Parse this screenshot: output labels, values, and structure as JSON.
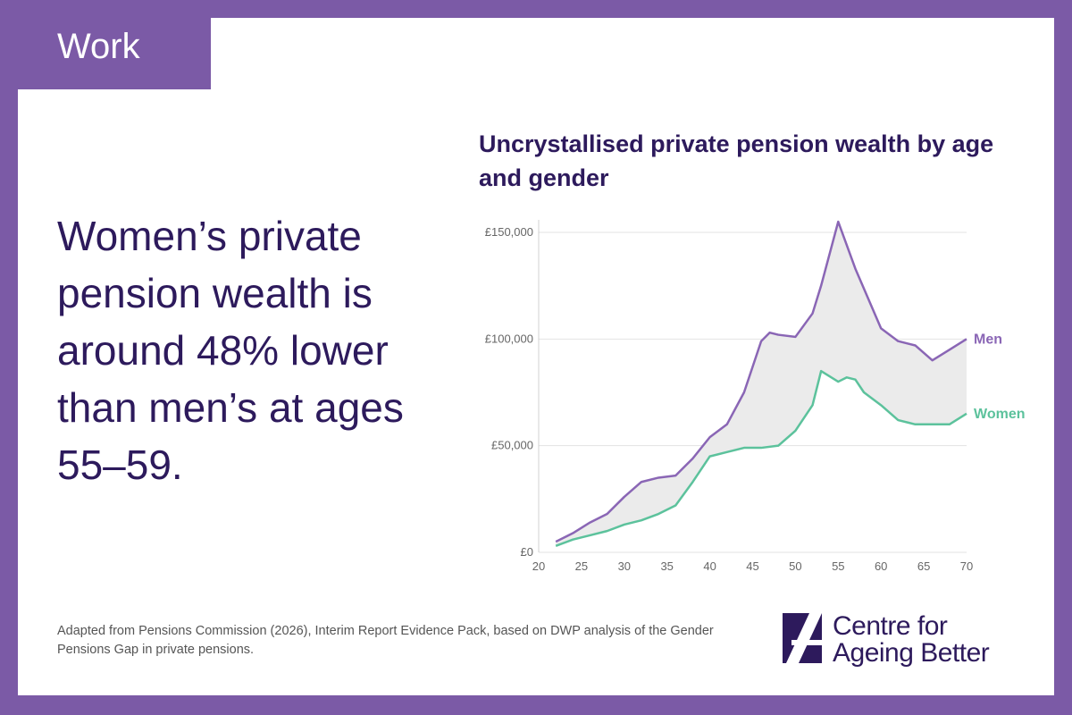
{
  "tag": "Work",
  "headline": "Women’s private pension wealth is around 48% lower than men’s at ages 55–59.",
  "source": "Adapted from Pensions Commission (2026), Interim Report Evidence Pack, based on DWP analysis of the Gender Pensions Gap in private pensions.",
  "logo": {
    "line1": "Centre for",
    "line2": "Ageing Better"
  },
  "colors": {
    "brand_purple": "#7b5aa6",
    "men": "#8a66b5",
    "women": "#5cc29c",
    "gap_fill": "#ebebeb",
    "text_dark": "#2d1a5c"
  },
  "chart_data": {
    "type": "line",
    "title": "Uncrystallised private pension wealth by age and gender",
    "xlabel": "",
    "ylabel": "",
    "xlim": [
      20,
      70
    ],
    "ylim": [
      0,
      150000
    ],
    "x_ticks": [
      20,
      25,
      30,
      35,
      40,
      45,
      50,
      55,
      60,
      65,
      70
    ],
    "y_ticks": [
      0,
      50000,
      100000,
      150000
    ],
    "y_tick_labels": [
      "£0",
      "£50,000",
      "£100,000",
      "£150,000"
    ],
    "grid": "horizontal",
    "legend": "end-of-line labels",
    "shaded_gap": true,
    "series": [
      {
        "name": "Men",
        "x": [
          22,
          24,
          26,
          28,
          30,
          32,
          34,
          36,
          38,
          40,
          42,
          44,
          46,
          47,
          48,
          50,
          52,
          53,
          55,
          57,
          60,
          62,
          64,
          66,
          68,
          70
        ],
        "y": [
          5000,
          9000,
          14000,
          18000,
          26000,
          33000,
          35000,
          36000,
          44000,
          54000,
          60000,
          75000,
          99000,
          103000,
          102000,
          101000,
          112000,
          125000,
          155000,
          133000,
          105000,
          99000,
          97000,
          90000,
          95000,
          100000
        ]
      },
      {
        "name": "Women",
        "x": [
          22,
          24,
          26,
          28,
          30,
          32,
          34,
          36,
          38,
          40,
          42,
          44,
          46,
          48,
          50,
          52,
          53,
          55,
          56,
          57,
          58,
          60,
          62,
          64,
          66,
          68,
          70
        ],
        "y": [
          3000,
          6000,
          8000,
          10000,
          13000,
          15000,
          18000,
          22000,
          33000,
          45000,
          47000,
          49000,
          49000,
          50000,
          57000,
          69000,
          85000,
          80000,
          82000,
          81000,
          75000,
          69000,
          62000,
          60000,
          60000,
          60000,
          65000
        ]
      }
    ]
  }
}
